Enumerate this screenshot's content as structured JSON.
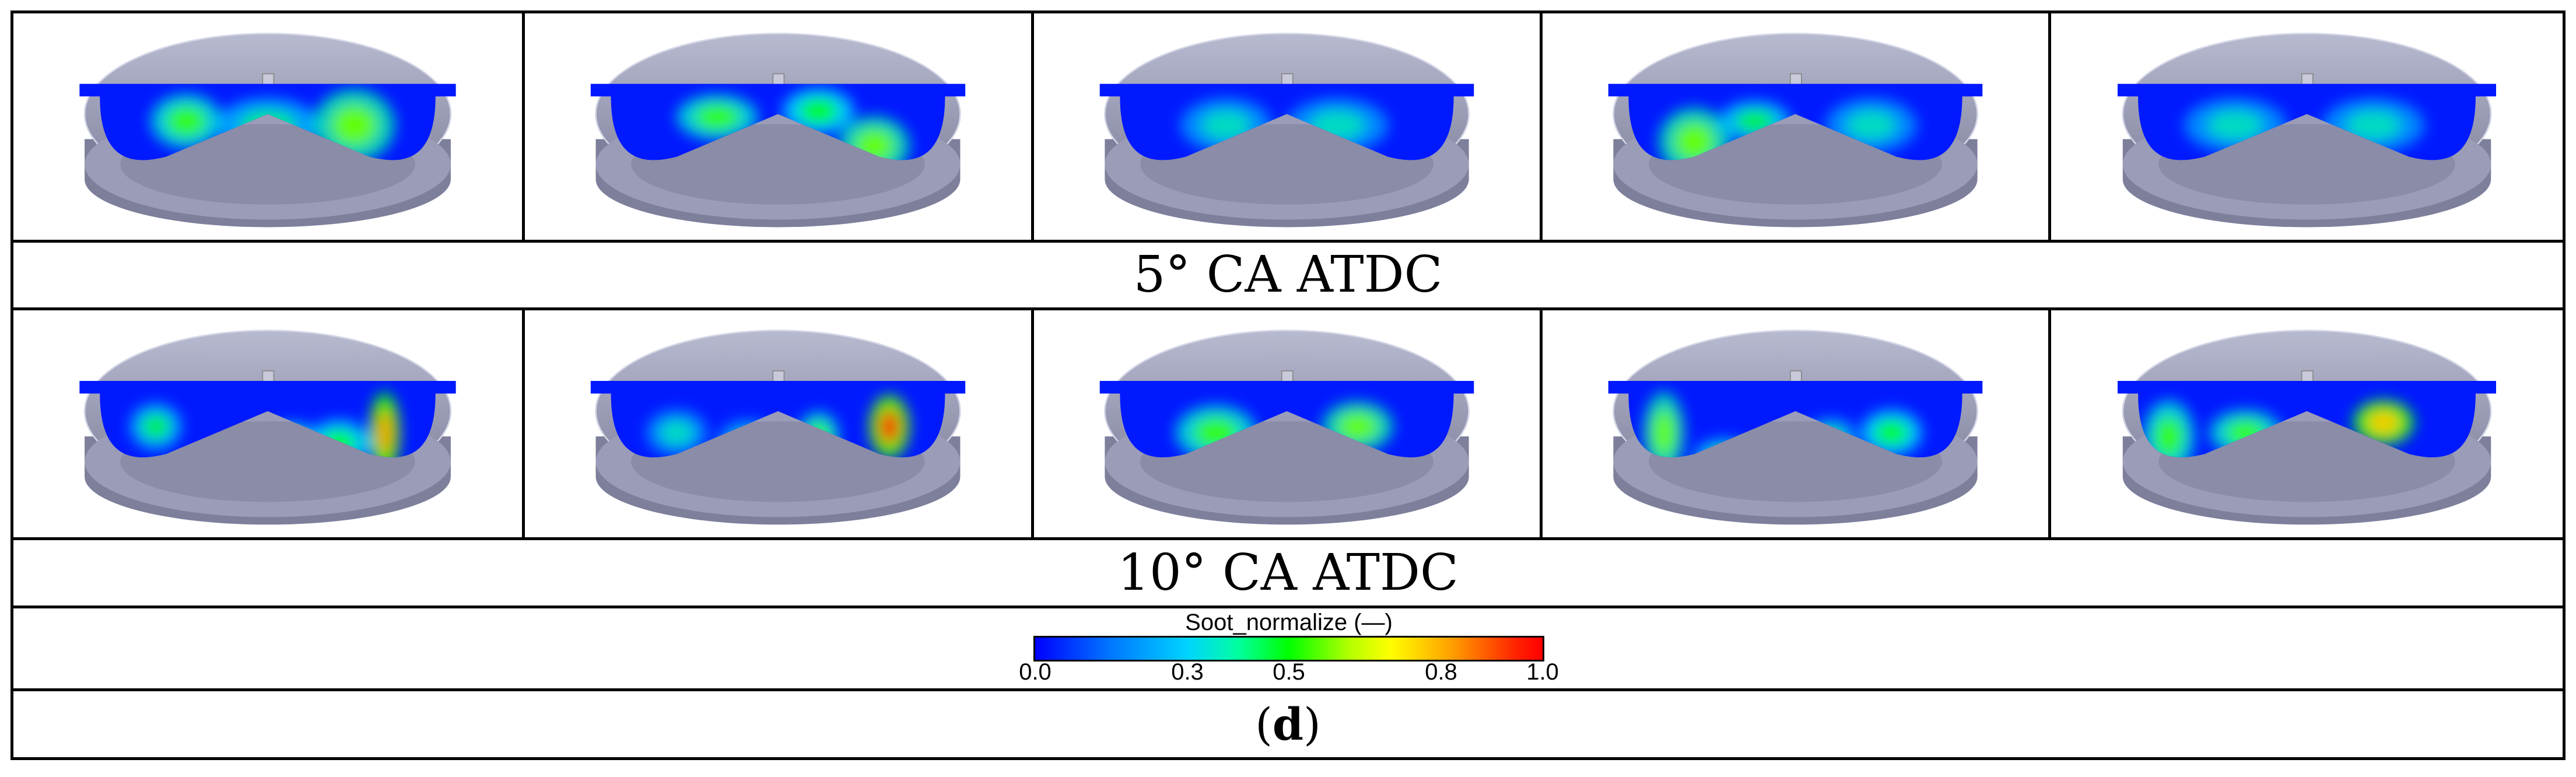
{
  "rows": [
    {
      "caption": "5° CA ATDC",
      "images": [
        {
          "name": "soot-contour-5deg-case-1",
          "blobs": [
            [
              0.34,
              0.48,
              0.07,
              0.12,
              0.55
            ],
            [
              0.5,
              0.5,
              0.1,
              0.12,
              0.4
            ],
            [
              0.67,
              0.5,
              0.08,
              0.16,
              0.6
            ]
          ]
        },
        {
          "name": "soot-contour-5deg-case-2",
          "blobs": [
            [
              0.38,
              0.46,
              0.08,
              0.1,
              0.55
            ],
            [
              0.58,
              0.43,
              0.07,
              0.1,
              0.5
            ],
            [
              0.69,
              0.6,
              0.07,
              0.13,
              0.6
            ]
          ]
        },
        {
          "name": "soot-contour-5deg-case-3",
          "blobs": [
            [
              0.38,
              0.5,
              0.09,
              0.12,
              0.35
            ],
            [
              0.6,
              0.5,
              0.1,
              0.12,
              0.35
            ]
          ]
        },
        {
          "name": "soot-contour-5deg-case-4",
          "blobs": [
            [
              0.3,
              0.58,
              0.07,
              0.15,
              0.6
            ],
            [
              0.42,
              0.48,
              0.07,
              0.09,
              0.45
            ],
            [
              0.65,
              0.5,
              0.09,
              0.12,
              0.35
            ]
          ]
        },
        {
          "name": "soot-contour-5deg-case-5",
          "blobs": [
            [
              0.36,
              0.5,
              0.1,
              0.12,
              0.35
            ],
            [
              0.63,
              0.5,
              0.1,
              0.12,
              0.35
            ]
          ]
        }
      ]
    },
    {
      "caption": "10° CA ATDC",
      "images": [
        {
          "name": "soot-contour-10deg-case-1",
          "blobs": [
            [
              0.28,
              0.52,
              0.05,
              0.1,
              0.45
            ],
            [
              0.55,
              0.58,
              0.05,
              0.07,
              0.45
            ],
            [
              0.64,
              0.6,
              0.06,
              0.1,
              0.5
            ],
            [
              0.73,
              0.55,
              0.03,
              0.18,
              0.85
            ]
          ]
        },
        {
          "name": "soot-contour-10deg-case-2",
          "blobs": [
            [
              0.3,
              0.55,
              0.06,
              0.1,
              0.35
            ],
            [
              0.44,
              0.6,
              0.06,
              0.1,
              0.35
            ],
            [
              0.58,
              0.56,
              0.04,
              0.1,
              0.55
            ],
            [
              0.72,
              0.52,
              0.04,
              0.14,
              0.95
            ]
          ]
        },
        {
          "name": "soot-contour-10deg-case-3",
          "blobs": [
            [
              0.36,
              0.55,
              0.08,
              0.12,
              0.55
            ],
            [
              0.64,
              0.52,
              0.07,
              0.11,
              0.6
            ]
          ]
        },
        {
          "name": "soot-contour-10deg-case-4",
          "blobs": [
            [
              0.24,
              0.55,
              0.04,
              0.18,
              0.6
            ],
            [
              0.36,
              0.67,
              0.06,
              0.08,
              0.45
            ],
            [
              0.57,
              0.57,
              0.05,
              0.08,
              0.4
            ],
            [
              0.69,
              0.55,
              0.06,
              0.1,
              0.5
            ]
          ]
        },
        {
          "name": "soot-contour-10deg-case-5",
          "blobs": [
            [
              0.23,
              0.57,
              0.05,
              0.16,
              0.55
            ],
            [
              0.38,
              0.55,
              0.07,
              0.1,
              0.55
            ],
            [
              0.65,
              0.5,
              0.06,
              0.1,
              0.8
            ]
          ]
        }
      ]
    }
  ],
  "legend": {
    "title": "Soot_normalize (—)",
    "ticks": [
      "0.0",
      "0.3",
      "0.5",
      "0.8",
      "1.0"
    ],
    "tick_values": [
      0.0,
      0.3,
      0.5,
      0.8,
      1.0
    ],
    "colormap": [
      "#0000ff",
      "#00d4ff",
      "#00ff00",
      "#ffff00",
      "#ff0000"
    ]
  },
  "panel_label": {
    "open": "(",
    "letter": "d",
    "close": ")"
  },
  "colors": {
    "piston": "#9a9cb8",
    "piston_dark": "#7d7f9b",
    "section": "#0019ff"
  }
}
